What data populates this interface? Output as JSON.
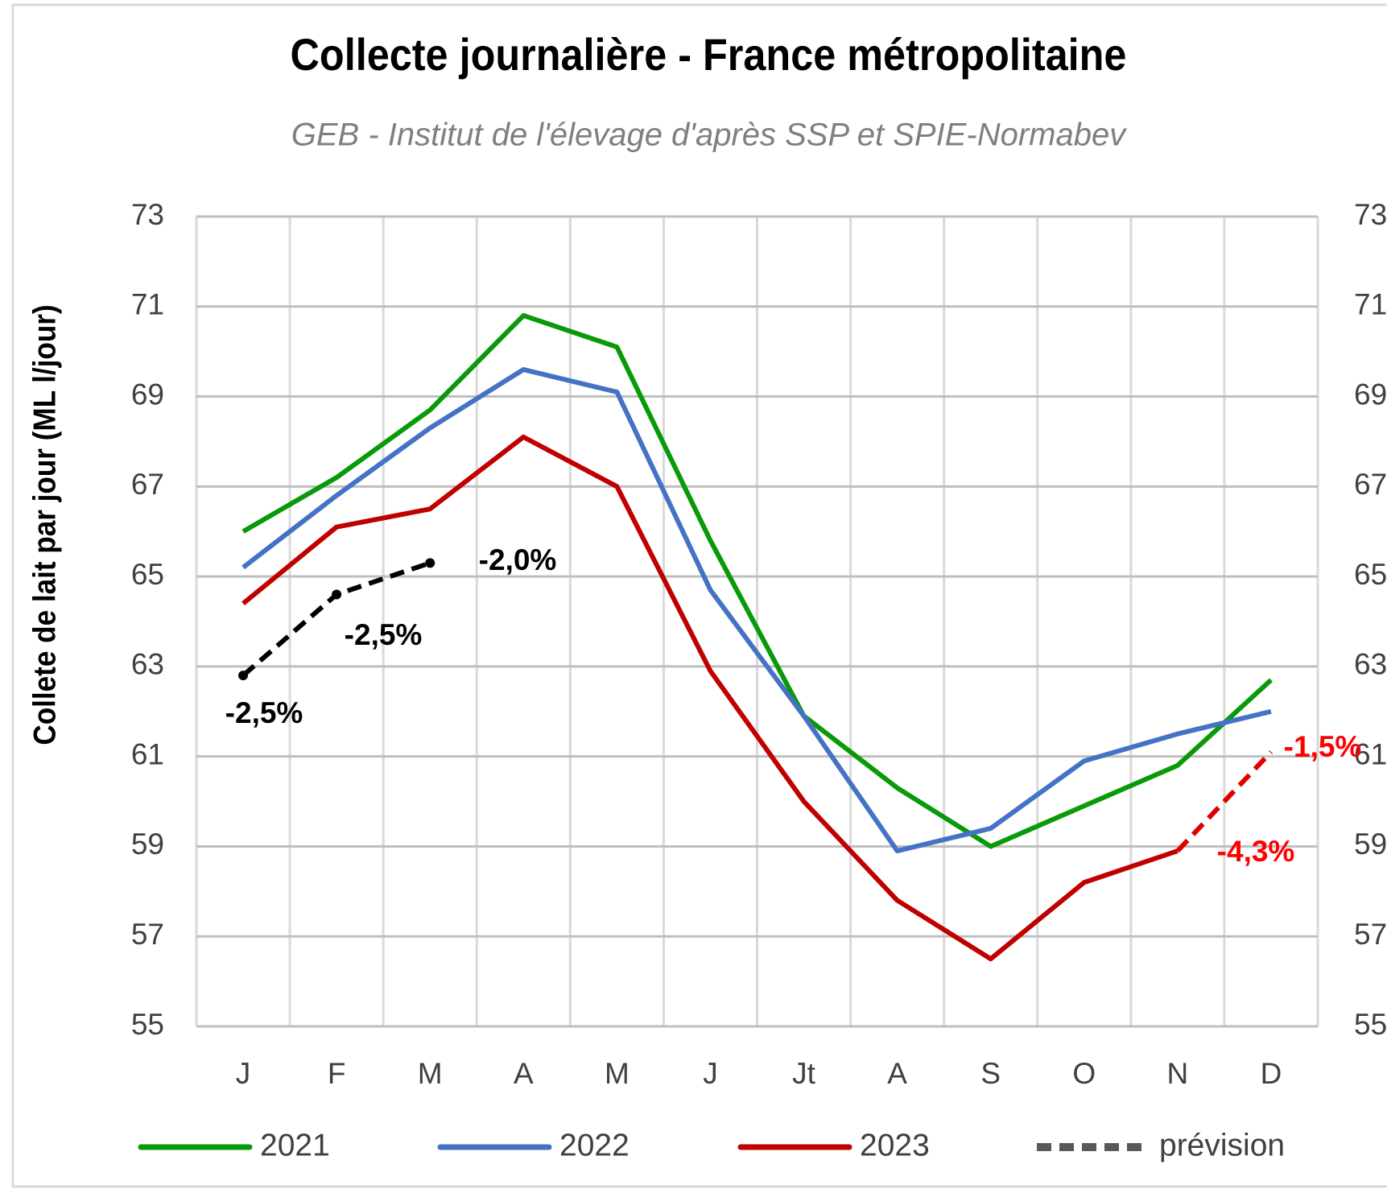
{
  "chart_data": {
    "type": "line",
    "title": "Collecte journalière - France métropolitaine",
    "subtitle": "GEB - Institut de l'élevage d'après SSP et SPIE-Normabev",
    "y_label": "Collete de lait par jour (ML l/jour)",
    "categories": [
      "J",
      "F",
      "M",
      "A",
      "M",
      "J",
      "Jt",
      "A",
      "S",
      "O",
      "N",
      "D"
    ],
    "series": [
      {
        "name": "2021",
        "color": "#089a08",
        "values": [
          66.0,
          67.2,
          68.7,
          70.8,
          70.1,
          65.8,
          61.9,
          60.3,
          59.0,
          59.9,
          60.8,
          62.7
        ]
      },
      {
        "name": "2022",
        "color": "#4472c4",
        "values": [
          65.2,
          66.8,
          68.3,
          69.6,
          69.1,
          64.7,
          61.9,
          58.9,
          59.4,
          60.9,
          61.5,
          62.0
        ]
      },
      {
        "name": "2023",
        "color": "#c00000",
        "values": [
          64.4,
          66.1,
          66.5,
          68.1,
          67.0,
          62.9,
          60.0,
          57.8,
          56.5,
          58.2,
          58.9,
          null
        ]
      }
    ],
    "forecast_legend": "prévision",
    "forecast_legend_color": "#595959",
    "forecast": [
      {
        "color": "#000000",
        "values": [
          62.8,
          64.6,
          65.3,
          null,
          null,
          null,
          null,
          null,
          null,
          null,
          null,
          null
        ]
      },
      {
        "color": "#e00000",
        "values": [
          null,
          null,
          null,
          null,
          null,
          null,
          null,
          null,
          null,
          null,
          58.9,
          61.1
        ]
      }
    ],
    "annotations": [
      {
        "text": "-2,5%",
        "color": "#000000"
      },
      {
        "text": "-2,5%",
        "color": "#000000"
      },
      {
        "text": "-2,0%",
        "color": "#000000"
      },
      {
        "text": "-4,3%",
        "color": "#ff0000"
      },
      {
        "text": "-1,5%",
        "color": "#ff0000"
      }
    ],
    "ylim": [
      55,
      73
    ],
    "yticks": [
      55,
      57,
      59,
      61,
      63,
      65,
      67,
      69,
      71,
      73
    ],
    "y2lim": [
      55,
      73
    ],
    "y2ticks": [
      55,
      57,
      59,
      61,
      63,
      65,
      67,
      69,
      71,
      73
    ],
    "grid": true
  }
}
